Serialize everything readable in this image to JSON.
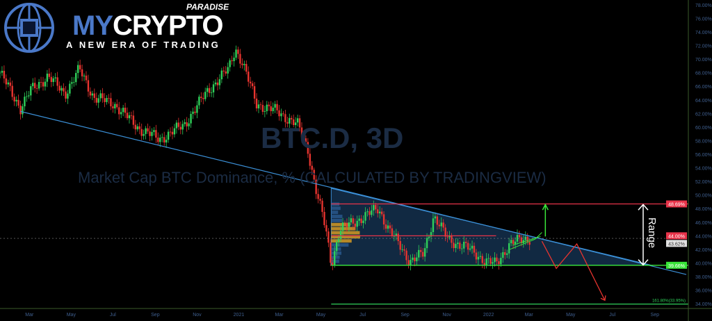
{
  "logo": {
    "brand_a": "MY",
    "brand_b": "CRYPTO",
    "paradise": "PARADISE",
    "tagline": "A NEW ERA OF TRADING"
  },
  "watermark": {
    "symbol": "BTC.D, 3D",
    "description": "Market Cap BTC Dominance, % (CALCULATED BY TRADINGVIEW)"
  },
  "chart_data": {
    "type": "candlestick",
    "symbol": "BTC.D",
    "interval": "3D",
    "ylim": [
      33.3,
      78.7
    ],
    "y_ticks": [
      "78.00%",
      "76.00%",
      "74.00%",
      "72.00%",
      "70.00%",
      "68.00%",
      "66.00%",
      "64.00%",
      "62.00%",
      "60.00%",
      "58.00%",
      "56.00%",
      "54.00%",
      "52.00%",
      "50.00%",
      "48.00%",
      "46.00%",
      "44.00%",
      "42.00%",
      "40.00%",
      "38.00%",
      "36.00%",
      "34.00%"
    ],
    "x_ticks": [
      {
        "label": "Mar",
        "date": "2020-03-01"
      },
      {
        "label": "May",
        "date": "2020-05-01"
      },
      {
        "label": "Jul",
        "date": "2020-07-01"
      },
      {
        "label": "Sep",
        "date": "2020-09-01"
      },
      {
        "label": "Nov",
        "date": "2020-11-01"
      },
      {
        "label": "2021",
        "date": "2021-01-01"
      },
      {
        "label": "Mar",
        "date": "2021-03-01"
      },
      {
        "label": "May",
        "date": "2021-05-01"
      },
      {
        "label": "Jul",
        "date": "2021-07-01"
      },
      {
        "label": "Sep",
        "date": "2021-09-01"
      },
      {
        "label": "Nov",
        "date": "2021-11-01"
      },
      {
        "label": "2022",
        "date": "2022-01-01"
      },
      {
        "label": "Mar",
        "date": "2022-03-01"
      },
      {
        "label": "May",
        "date": "2022-05-01"
      },
      {
        "label": "Jul",
        "date": "2022-07-01"
      },
      {
        "label": "Sep",
        "date": "2022-09-01"
      }
    ],
    "xlim": [
      "2020-01-18",
      "2022-10-20"
    ],
    "close_path": [
      [
        "2020-01-18",
        68.0
      ],
      [
        "2020-02-17",
        62.8
      ],
      [
        "2020-03-03",
        65.4
      ],
      [
        "2020-03-28",
        67.5
      ],
      [
        "2020-04-22",
        64.9
      ],
      [
        "2020-05-13",
        68.5
      ],
      [
        "2020-06-03",
        64.4
      ],
      [
        "2020-07-03",
        63.4
      ],
      [
        "2020-08-08",
        59.8
      ],
      [
        "2020-09-07",
        58.2
      ],
      [
        "2020-10-13",
        60.3
      ],
      [
        "2020-11-17",
        65.4
      ],
      [
        "2020-12-17",
        68.5
      ],
      [
        "2020-12-27",
        71.6
      ],
      [
        "2021-01-06",
        69.5
      ],
      [
        "2021-01-27",
        63.4
      ],
      [
        "2021-02-26",
        62.3
      ],
      [
        "2021-03-28",
        60.3
      ],
      [
        "2021-04-12",
        56.7
      ],
      [
        "2021-04-23",
        51.1
      ],
      [
        "2021-05-08",
        45.0
      ],
      [
        "2021-05-16",
        39.8
      ],
      [
        "2021-05-29",
        45.0
      ],
      [
        "2021-06-18",
        46.0
      ],
      [
        "2021-07-24",
        48.0
      ],
      [
        "2021-08-08",
        45.0
      ],
      [
        "2021-09-08",
        40.3
      ],
      [
        "2021-09-28",
        41.3
      ],
      [
        "2021-10-13",
        47.0
      ],
      [
        "2021-11-03",
        43.4
      ],
      [
        "2021-11-28",
        42.4
      ],
      [
        "2021-12-28",
        40.3
      ],
      [
        "2022-01-12",
        39.8
      ],
      [
        "2022-02-01",
        42.9
      ],
      [
        "2022-03-04",
        43.7
      ]
    ],
    "colors": {
      "up": "#2fd15a",
      "down": "#e8342f",
      "trendline": "#3b8fd6",
      "resistance": "#e8344a",
      "support": "#39e639",
      "fib": "#2fd15a"
    },
    "price_labels": [
      {
        "text": "48.69%",
        "value": 48.69,
        "color": "#e8344a"
      },
      {
        "text": "44.00%",
        "value": 44.0,
        "color": "#e8344a"
      },
      {
        "text": "43.62%",
        "value": 43.62,
        "color": "#e0e0e0"
      },
      {
        "text": "39.66%",
        "value": 39.66,
        "color": "#39e639"
      }
    ],
    "levels": [
      {
        "value": 48.69,
        "from": "2021-05-16",
        "color": "#e8344a"
      },
      {
        "value": 44.0,
        "from": "2021-05-16",
        "to": "2022-01-12",
        "color": "#e8344a"
      },
      {
        "value": 39.66,
        "from": "2021-05-16",
        "color": "#39e639"
      },
      {
        "value": 33.95,
        "from": "2021-05-16",
        "color": "#2fd15a",
        "label": "161.80%(33.95%)"
      }
    ],
    "trendlines": [
      {
        "from": [
          "2020-02-17",
          62.3
        ],
        "to": [
          "2022-10-17",
          38.3
        ]
      },
      {
        "from": [
          "2021-05-16",
          51.0
        ],
        "to": [
          "2022-08-27",
          39.66
        ]
      }
    ],
    "range_label": "Range",
    "projection_path": [
      [
        "2022-03-20",
        43.2
      ],
      [
        "2022-04-10",
        39.2
      ],
      [
        "2022-05-10",
        42.8
      ],
      [
        "2022-06-20",
        34.5
      ]
    ]
  }
}
